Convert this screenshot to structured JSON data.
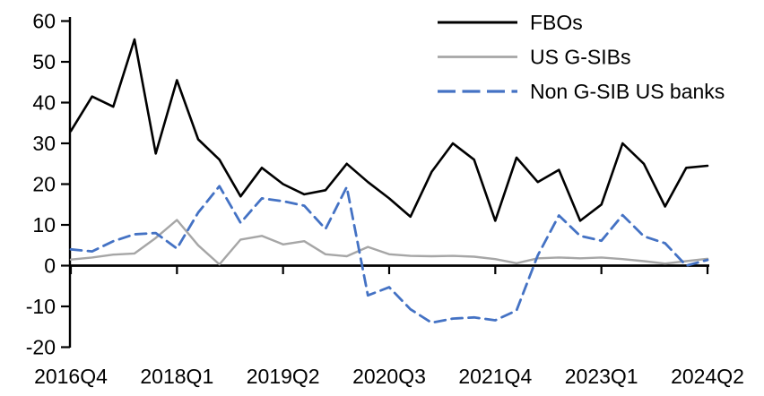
{
  "chart_data": {
    "type": "line",
    "title": "",
    "xlabel": "",
    "ylabel": "",
    "grid": false,
    "legend_position": "top-right",
    "ylim": [
      -20,
      60
    ],
    "y_ticks": [
      60,
      50,
      40,
      30,
      20,
      10,
      0,
      -10,
      -20
    ],
    "x_tick_labels": [
      "2016Q4",
      "2018Q1",
      "2019Q2",
      "2020Q3",
      "2021Q4",
      "2023Q1",
      "2024Q2"
    ],
    "x_categories": [
      "2016Q4",
      "2017Q1",
      "2017Q2",
      "2017Q3",
      "2017Q4",
      "2018Q1",
      "2018Q2",
      "2018Q3",
      "2018Q4",
      "2019Q1",
      "2019Q2",
      "2019Q3",
      "2019Q4",
      "2020Q1",
      "2020Q2",
      "2020Q3",
      "2020Q4",
      "2021Q1",
      "2021Q2",
      "2021Q3",
      "2021Q4",
      "2022Q1",
      "2022Q2",
      "2022Q3",
      "2022Q4",
      "2023Q1",
      "2023Q2",
      "2023Q3",
      "2023Q4",
      "2024Q1",
      "2024Q2"
    ],
    "series": [
      {
        "id": "fbos",
        "name": "FBOs",
        "color": "#000000",
        "style": "solid",
        "width": 2.6,
        "values": [
          33,
          41.5,
          39,
          55.5,
          27.5,
          45.5,
          31,
          26,
          17,
          24,
          20,
          17.5,
          18.5,
          25,
          20.5,
          16.5,
          12,
          23,
          30,
          26,
          11,
          26.5,
          20.5,
          23.5,
          11,
          15,
          30,
          25,
          14.5,
          24,
          24.5
        ]
      },
      {
        "id": "us-gsibs",
        "name": "US G-SIBs",
        "color": "#A6A6A6",
        "style": "solid",
        "width": 2.4,
        "values": [
          1.5,
          2,
          2.7,
          3,
          6.8,
          11.2,
          5,
          0.3,
          6.4,
          7.3,
          5.2,
          6,
          2.8,
          2.3,
          4.6,
          2.8,
          2.4,
          2.3,
          2.4,
          2.2,
          1.6,
          0.6,
          1.8,
          2,
          1.8,
          2,
          1.6,
          1.1,
          0.5,
          1.1,
          1.7
        ]
      },
      {
        "id": "non-gsib-us-banks",
        "name": "Non G-SIB US banks",
        "color": "#4472C4",
        "style": "dashed",
        "width": 2.8,
        "values": [
          4,
          3.5,
          6,
          7.7,
          8,
          4.2,
          13,
          19.5,
          10.5,
          16.5,
          15.8,
          14.7,
          9,
          19.3,
          -7.3,
          -5.3,
          -10.7,
          -14,
          -13,
          -12.7,
          -13.4,
          -11,
          2.5,
          12.3,
          7.3,
          6.1,
          12.4,
          7.2,
          5.5,
          0,
          1.4
        ]
      }
    ]
  }
}
